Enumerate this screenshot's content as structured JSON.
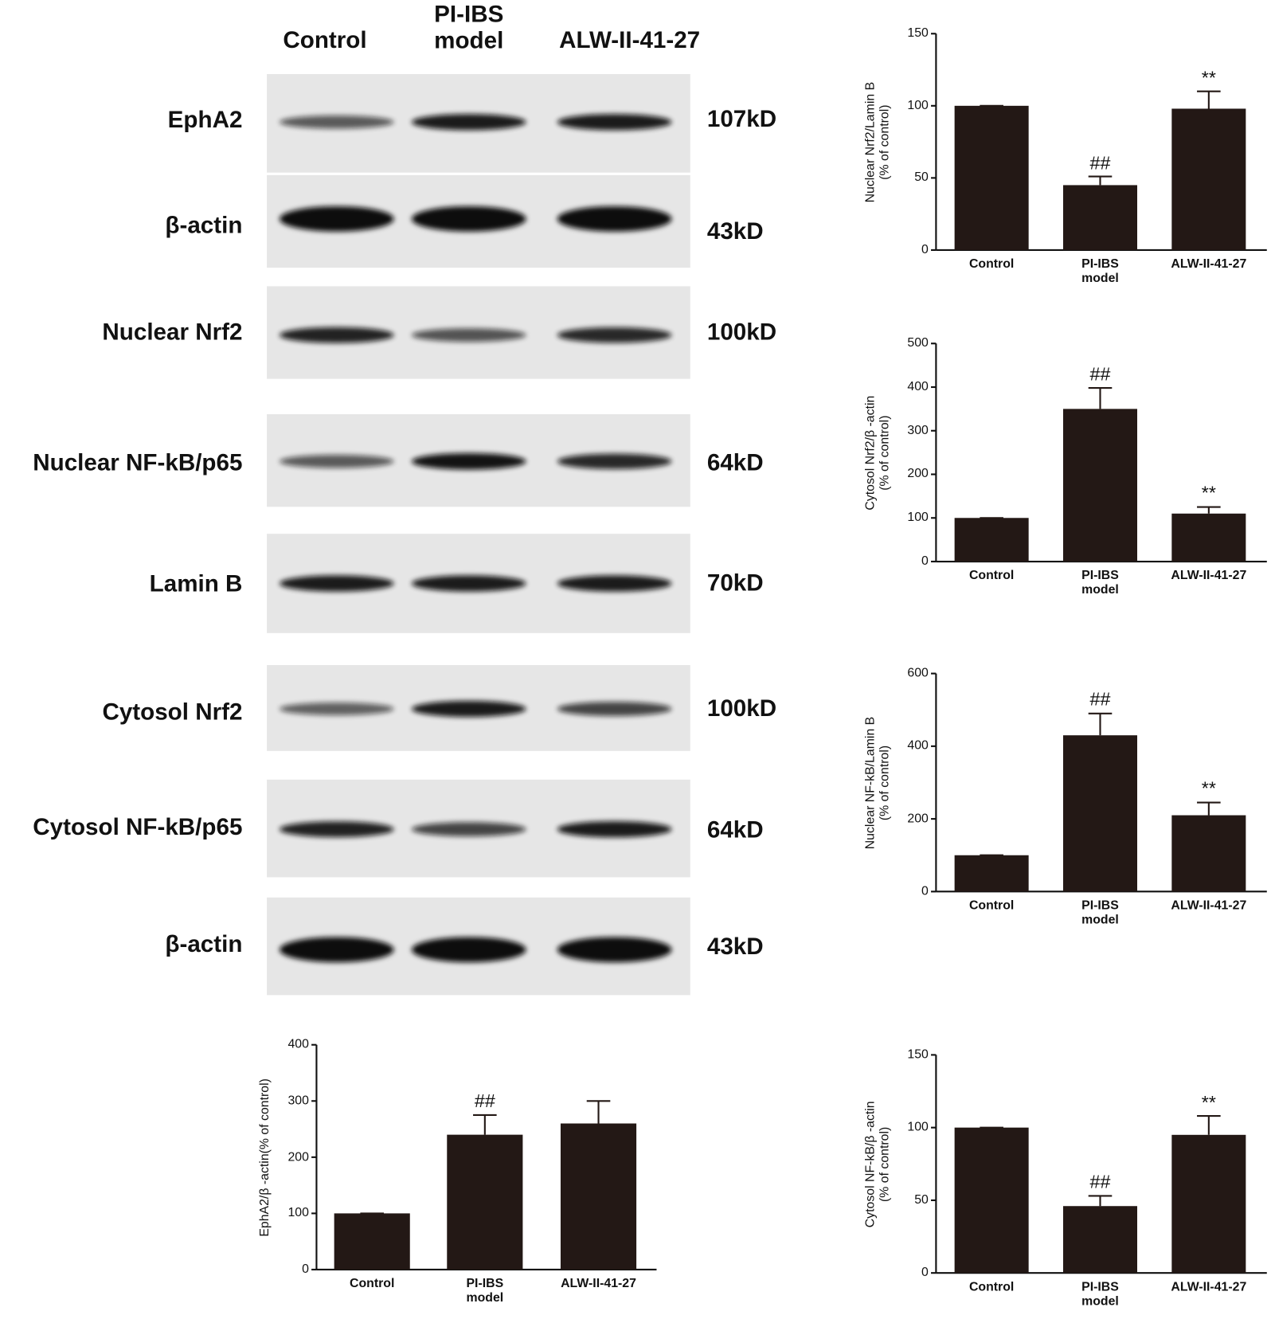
{
  "blot": {
    "lanes": [
      "Control",
      "PI-IBS\nmodel",
      "ALW-II-41-27"
    ],
    "rows": [
      {
        "protein": "EphA2",
        "size": "107kD"
      },
      {
        "protein": "β-actin",
        "size": "43kD"
      },
      {
        "protein": "Nuclear Nrf2",
        "size": "100kD"
      },
      {
        "protein": "Nuclear NF-kB/p65",
        "size": "64kD"
      },
      {
        "protein": "Lamin B",
        "size": "70kD"
      },
      {
        "protein": "Cytosol Nrf2",
        "size": "100kD"
      },
      {
        "protein": "Cytosol NF-kB/p65",
        "size": "64kD"
      },
      {
        "protein": "β-actin",
        "size": "43kD"
      }
    ]
  },
  "chart_data": [
    {
      "type": "bar",
      "y_label": "Nuclear Nrf2/Lamin B\n(% of control)",
      "color": "#231815",
      "categories": [
        "Control",
        "PI-IBS\nmodel",
        "ALW-II-41-27"
      ],
      "values": [
        100,
        45,
        98
      ],
      "errors": [
        0,
        6,
        12
      ],
      "annotations": [
        null,
        "##",
        "**"
      ],
      "ylim": [
        0,
        150
      ],
      "yticks": [
        0,
        50,
        100,
        150
      ]
    },
    {
      "type": "bar",
      "y_label": "Cytosol Nrf2/β -actin\n(% of control)",
      "color": "#231815",
      "categories": [
        "Control",
        "PI-IBS\nmodel",
        "ALW-II-41-27"
      ],
      "values": [
        100,
        350,
        110
      ],
      "errors": [
        0,
        48,
        15
      ],
      "annotations": [
        null,
        "##",
        "**"
      ],
      "ylim": [
        0,
        500
      ],
      "yticks": [
        0,
        100,
        200,
        300,
        400,
        500
      ]
    },
    {
      "type": "bar",
      "y_label": "Nuclear NF-kB/Lamin B\n(% of control)",
      "color": "#231815",
      "categories": [
        "Control",
        "PI-IBS\nmodel",
        "ALW-II-41-27"
      ],
      "values": [
        100,
        430,
        210
      ],
      "errors": [
        0,
        60,
        35
      ],
      "annotations": [
        null,
        "##",
        "**"
      ],
      "ylim": [
        0,
        600
      ],
      "yticks": [
        0,
        200,
        400,
        600
      ]
    },
    {
      "type": "bar",
      "y_label": "Cytosol NF-kB/β -actin\n(% of control)",
      "color": "#231815",
      "categories": [
        "Control",
        "PI-IBS\nmodel",
        "ALW-II-41-27"
      ],
      "values": [
        100,
        46,
        95
      ],
      "errors": [
        0,
        7,
        13
      ],
      "annotations": [
        null,
        "##",
        "**"
      ],
      "ylim": [
        0,
        150
      ],
      "yticks": [
        0,
        50,
        100,
        150
      ]
    },
    {
      "type": "bar",
      "y_label": "EphA2/β -actin(% of control)",
      "color": "#231815",
      "categories": [
        "Control",
        "PI-IBS\nmodel",
        "ALW-II-41-27"
      ],
      "values": [
        100,
        240,
        260
      ],
      "errors": [
        0,
        35,
        40
      ],
      "annotations": [
        null,
        "##",
        null
      ],
      "ylim": [
        0,
        400
      ],
      "yticks": [
        0,
        100,
        200,
        300,
        400
      ]
    }
  ]
}
